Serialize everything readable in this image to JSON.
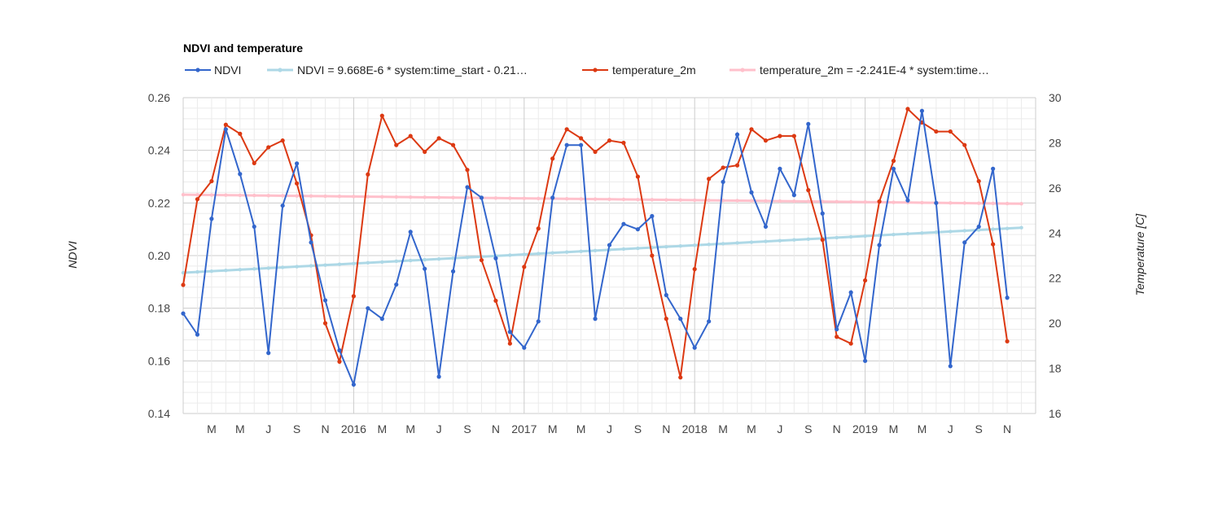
{
  "chart_data": {
    "type": "line",
    "title": "NDVI and temperature",
    "legend_position": "top",
    "grid": true,
    "x_ticks": [
      "M",
      "M",
      "J",
      "S",
      "N",
      "2016",
      "M",
      "M",
      "J",
      "S",
      "N",
      "2017",
      "M",
      "M",
      "J",
      "S",
      "N",
      "2018",
      "M",
      "M",
      "J",
      "S",
      "N",
      "2019",
      "M",
      "M",
      "J",
      "S",
      "N"
    ],
    "x_range": [
      "2015-01",
      "2019-12"
    ],
    "y_left": {
      "label": "NDVI",
      "range": [
        0.14,
        0.26
      ],
      "ticks": [
        "0.14",
        "0.16",
        "0.18",
        "0.20",
        "0.22",
        "0.24",
        "0.26"
      ]
    },
    "y_right": {
      "label": "Temperature [C]",
      "range": [
        16,
        30
      ],
      "ticks": [
        "16",
        "18",
        "20",
        "22",
        "24",
        "26",
        "28",
        "30"
      ]
    },
    "series": [
      {
        "name": "NDVI",
        "axis": "left",
        "color": "#3366cc",
        "values": [
          0.178,
          0.17,
          0.214,
          0.248,
          0.231,
          0.211,
          0.163,
          0.219,
          0.235,
          0.205,
          0.183,
          0.164,
          0.151,
          0.18,
          0.176,
          0.189,
          0.209,
          0.195,
          0.154,
          0.194,
          0.226,
          0.222,
          0.199,
          0.171,
          0.165,
          0.175,
          0.222,
          0.242,
          0.242,
          0.176,
          0.204,
          0.212,
          0.21,
          0.215,
          0.185,
          0.176,
          0.165,
          0.175,
          0.228,
          0.246,
          0.224,
          0.211,
          0.233,
          0.223,
          0.25,
          0.216,
          0.172,
          0.186,
          0.16,
          0.204,
          0.233,
          0.221,
          0.255,
          0.22,
          0.158,
          0.205,
          0.211,
          0.233,
          0.184
        ]
      },
      {
        "name": "NDVI = 9.668E-6 * system:time_start - 0.21…",
        "axis": "left",
        "color": "#add8e6",
        "trendline": true,
        "start": 0.1935,
        "end": 0.2106
      },
      {
        "name": "temperature_2m",
        "axis": "right",
        "color": "#dc3912",
        "values": [
          21.7,
          25.5,
          26.3,
          28.8,
          28.4,
          27.1,
          27.8,
          28.1,
          26.2,
          23.9,
          20.0,
          18.3,
          21.2,
          26.6,
          29.2,
          27.9,
          28.3,
          27.6,
          28.2,
          27.9,
          26.8,
          22.8,
          21.0,
          19.1,
          22.5,
          24.2,
          27.3,
          28.6,
          28.2,
          27.6,
          28.1,
          28.0,
          26.5,
          23.0,
          20.2,
          17.6,
          22.4,
          26.4,
          26.9,
          27.0,
          28.6,
          28.1,
          28.3,
          28.3,
          25.9,
          23.7,
          19.4,
          19.1,
          21.9,
          25.4,
          27.2,
          29.5,
          28.9,
          28.5,
          28.5,
          27.9,
          26.3,
          23.5,
          19.2
        ]
      },
      {
        "name": "temperature_2m = -2.241E-4 * system:time…",
        "axis": "right",
        "color": "#ffc0cb",
        "trendline": true,
        "start": 25.7,
        "end": 25.3
      }
    ]
  }
}
